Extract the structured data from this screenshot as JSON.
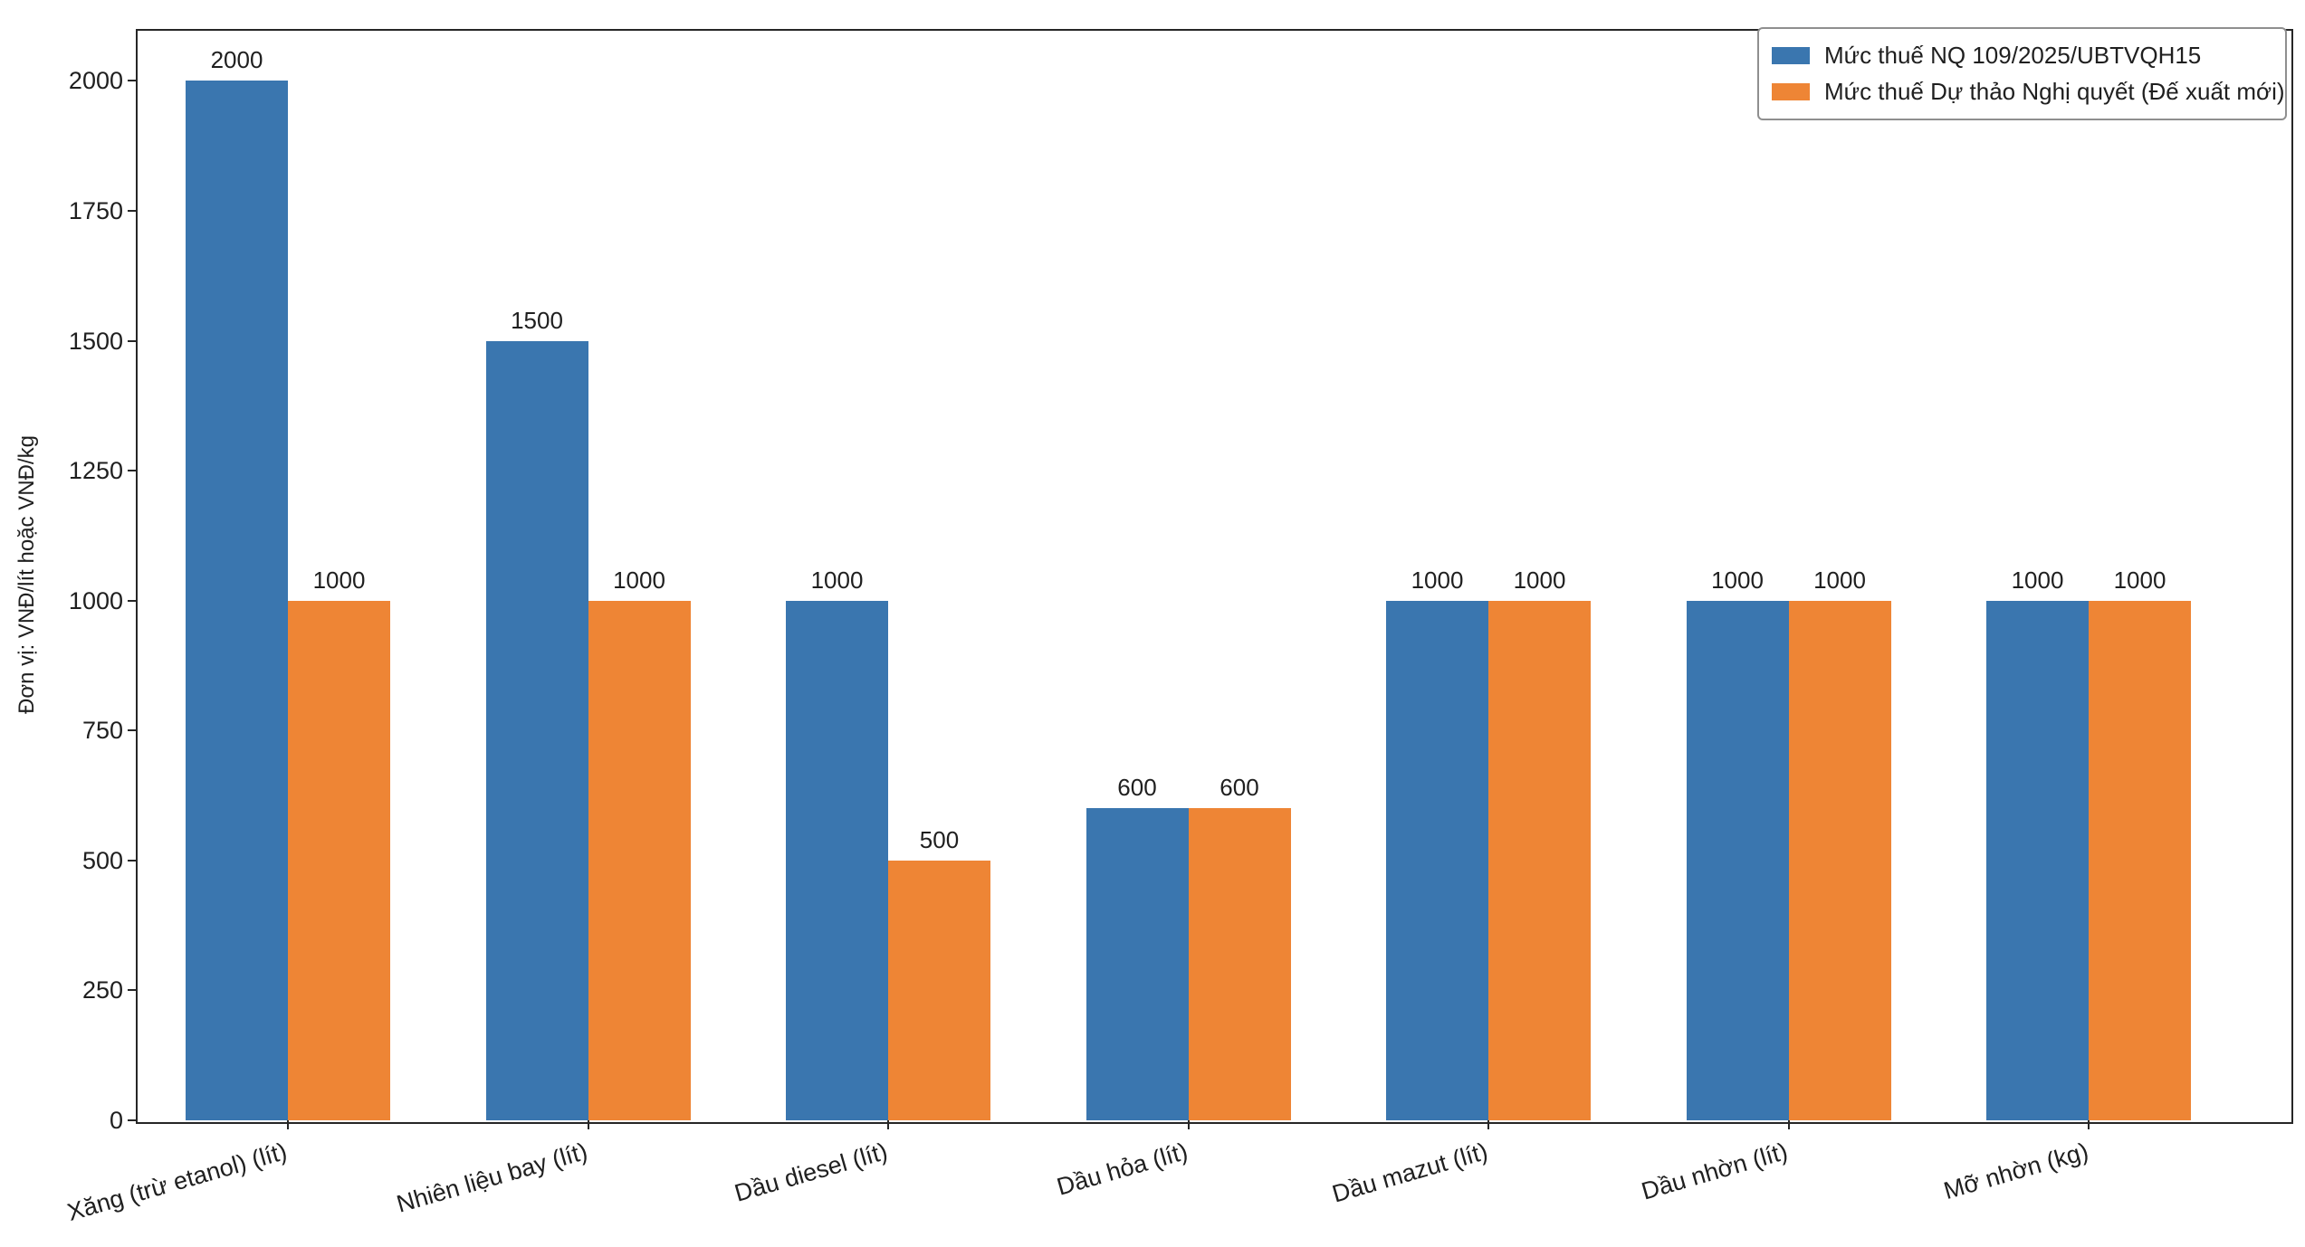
{
  "figure": {
    "background": "#ffffff",
    "frame_color": "#262626"
  },
  "chart_data": {
    "type": "bar",
    "title": "",
    "categories": [
      "Xăng (trừ etanol) (lít)",
      "Nhiên liệu bay (lít)",
      "Dầu diesel (lít)",
      "Dầu hỏa (lít)",
      "Dầu mazut (lít)",
      "Dầu nhờn (lít)",
      "Mỡ nhờn (kg)"
    ],
    "series": [
      {
        "name": "Mức thuế NQ 109/2025/UBTVQH15",
        "color": "#3a76af",
        "values": [
          2000,
          1500,
          1000,
          600,
          1000,
          1000,
          1000
        ]
      },
      {
        "name": "Mức thuế Dự thảo Nghị quyết (Đế xuất mới)",
        "color": "#ee8535",
        "values": [
          1000,
          1000,
          500,
          600,
          1000,
          1000,
          1000
        ]
      }
    ],
    "xlabel": "",
    "ylabel": "Đơn vị: VNĐ/lít hoặc VNĐ/kg",
    "ylim": [
      0,
      2100
    ],
    "yticks": [
      0,
      250,
      500,
      750,
      1000,
      1250,
      1500,
      1750,
      2000
    ],
    "bar_value_labels": true,
    "grid": false,
    "legend_position": "upper right"
  }
}
